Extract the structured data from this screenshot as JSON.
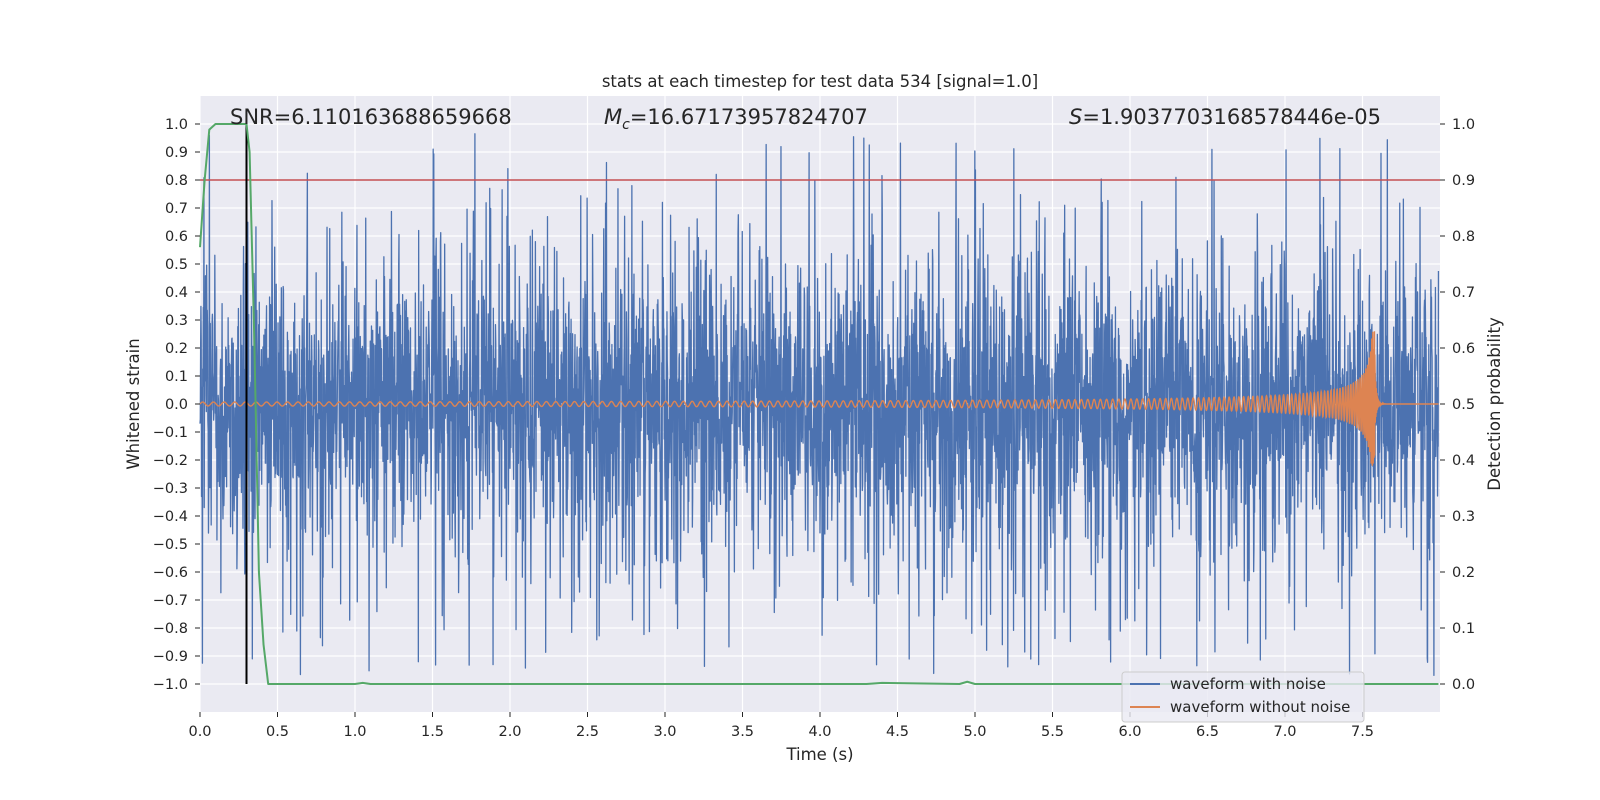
{
  "chart_data": {
    "type": "line",
    "title": "stats at each timestep for test data 534 [signal=1.0]",
    "xlabel": "Time (s)",
    "ylabel_left": "Whitened strain",
    "ylabel_right": "Detection probability",
    "xlim": [
      0.0,
      8.0
    ],
    "ylim_left": [
      -1.1,
      1.1
    ],
    "ylim_right": [
      -0.05,
      1.05
    ],
    "x_ticks": [
      "0.0",
      "0.5",
      "1.0",
      "1.5",
      "2.0",
      "2.5",
      "3.0",
      "3.5",
      "4.0",
      "4.5",
      "5.0",
      "5.5",
      "6.0",
      "6.5",
      "7.0",
      "7.5"
    ],
    "y_left_ticks": [
      "1.0",
      "0.9",
      "0.8",
      "0.7",
      "0.6",
      "0.5",
      "0.4",
      "0.3",
      "0.2",
      "0.1",
      "0.0",
      "−0.1",
      "−0.2",
      "−0.3",
      "−0.4",
      "−0.5",
      "−0.6",
      "−0.7",
      "−0.8",
      "−0.9",
      "−1.0"
    ],
    "y_right_ticks": [
      "1.0",
      "0.9",
      "0.8",
      "0.7",
      "0.6",
      "0.5",
      "0.4",
      "0.3",
      "0.2",
      "0.1",
      "0.0"
    ],
    "grid": true,
    "annotations": {
      "snr": "SNR=6.110163688659668",
      "mc_symbol": "M",
      "mc_subscript": "c",
      "mc_value": "=16.67173957824707",
      "s_symbol": "S",
      "s_value": "=1.9037703168578446e-05"
    },
    "threshold": {
      "axis": "right",
      "value": 0.9,
      "color": "#c44e52"
    },
    "marker_line": {
      "x": 0.3,
      "y_from": -1.0,
      "y_to": 1.0,
      "color": "#000000"
    },
    "series": [
      {
        "name": "waveform with noise",
        "axis": "left",
        "color": "#4c72b0",
        "description": "noisy whitened strain, mostly within ±0.45 with spikes to about ±0.97",
        "approx_envelope": {
          "typical_amplitude": 0.45,
          "peak_amplitude": 0.97
        }
      },
      {
        "name": "waveform without noise",
        "axis": "left",
        "color": "#dd8452",
        "chirp": {
          "start_freq_hz": 9.0,
          "end_time_s": 7.58,
          "start_amplitude": 0.007,
          "peak_amplitude": 0.26,
          "ringdown_after_s": 7.58
        }
      },
      {
        "name": "detection probability",
        "axis": "right",
        "color": "#55a868",
        "x": [
          0.0,
          0.03,
          0.06,
          0.1,
          0.15,
          0.2,
          0.25,
          0.3,
          0.32,
          0.35,
          0.38,
          0.41,
          0.44,
          1.0,
          1.05,
          1.1,
          4.3,
          4.4,
          4.9,
          4.95,
          5.0,
          7.99
        ],
        "y": [
          0.78,
          0.9,
          0.99,
          1.0,
          1.0,
          1.0,
          1.0,
          1.0,
          0.95,
          0.62,
          0.2,
          0.07,
          0.0,
          0.0,
          0.002,
          0.0,
          0.0,
          0.002,
          0.0,
          0.004,
          0.0,
          0.0
        ]
      }
    ],
    "legend": {
      "location": "lower right",
      "entries": [
        {
          "label": "waveform with noise",
          "color": "#4c72b0"
        },
        {
          "label": "waveform without noise",
          "color": "#dd8452"
        }
      ]
    }
  },
  "colors": {
    "plot_background": "#eaeaf2",
    "grid": "#ffffff",
    "text": "#262626"
  }
}
